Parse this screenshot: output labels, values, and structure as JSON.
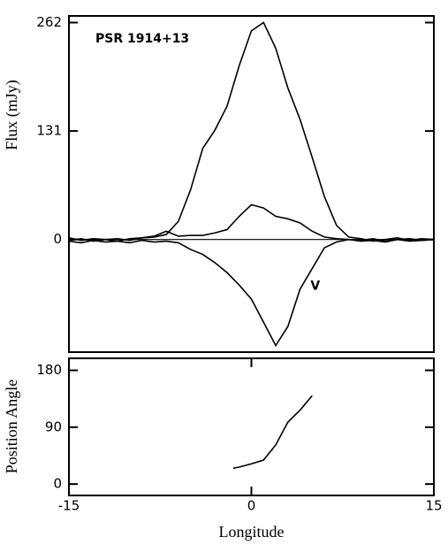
{
  "chart_data": [
    {
      "type": "line",
      "ylabel": "Flux  (mJy)",
      "annotation": "PSR 1914+13",
      "x": [
        -15,
        -14,
        -13,
        -12,
        -11,
        -10,
        -9,
        -8,
        -7,
        -6,
        -5,
        -4,
        -3,
        -2,
        -1,
        0,
        1,
        2,
        3,
        4,
        5,
        6,
        7,
        8,
        9,
        10,
        11,
        12,
        13,
        14,
        15
      ],
      "series": [
        {
          "color": "#000000",
          "values": [
            2,
            -1,
            1,
            0,
            -2,
            1,
            2,
            3,
            6,
            22,
            60,
            110,
            132,
            161,
            210,
            252,
            262,
            231,
            183,
            145,
            99,
            52,
            17,
            3,
            1,
            -2,
            0,
            2,
            -1,
            1,
            0
          ]
        },
        {
          "color": "#000000",
          "values": [
            -1,
            1,
            -2,
            0,
            1,
            -1,
            2,
            4,
            10,
            4,
            5,
            5,
            8,
            12,
            28,
            42,
            38,
            28,
            25,
            20,
            10,
            3,
            1,
            0,
            -1,
            1,
            -2,
            0,
            1,
            -1,
            0
          ]
        },
        {
          "name": "V",
          "color": "#000000",
          "values": [
            -2,
            -4,
            -1,
            -3,
            -2,
            -4,
            -1,
            -3,
            -2,
            -4,
            -12,
            -18,
            -28,
            -40,
            -55,
            -72,
            -100,
            -128,
            -105,
            -60,
            -35,
            -10,
            -3,
            0,
            -2,
            -1,
            -3,
            0,
            -2,
            -1,
            0
          ]
        }
      ],
      "xlim": [
        -15,
        15
      ],
      "ylim": [
        -136,
        270
      ],
      "yticks": [
        0,
        131,
        262
      ]
    },
    {
      "type": "line",
      "ylabel": "Position Angle",
      "xlabel": "Longitude",
      "x": [
        -1.5,
        -1,
        0,
        1,
        2,
        3,
        4,
        5
      ],
      "series": [
        {
          "color": "#000000",
          "values": [
            25,
            27,
            32,
            38,
            62,
            98,
            117,
            140
          ]
        }
      ],
      "xlim": [
        -15,
        15
      ],
      "ylim": [
        -18,
        199
      ],
      "yticks": [
        0,
        90,
        180
      ],
      "xticks": [
        -15,
        0,
        15
      ]
    }
  ]
}
